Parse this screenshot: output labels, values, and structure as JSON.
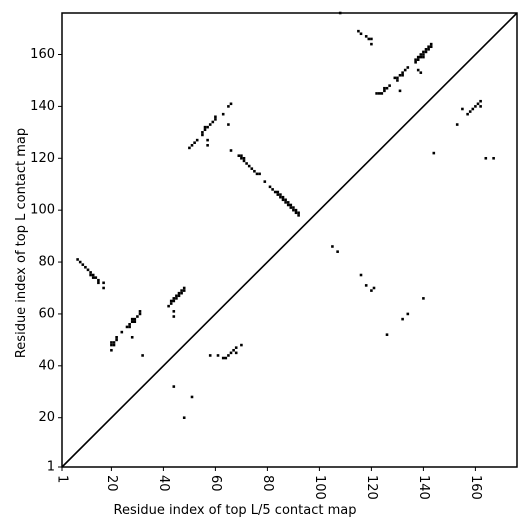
{
  "chart_data": {
    "type": "heatmap",
    "title": "",
    "xlabel": "Residue index of top L/5 contact map",
    "ylabel": "Residue index of top L contact map",
    "xlim": [
      1,
      176
    ],
    "ylim": [
      1,
      176
    ],
    "xticks": [
      {
        "value": 1,
        "label": "1"
      },
      {
        "value": 20,
        "label": "20"
      },
      {
        "value": 40,
        "label": "40"
      },
      {
        "value": 60,
        "label": "60"
      },
      {
        "value": 80,
        "label": "80"
      },
      {
        "value": 100,
        "label": "100"
      },
      {
        "value": 120,
        "label": "120"
      },
      {
        "value": 140,
        "label": "140"
      },
      {
        "value": 160,
        "label": "160"
      }
    ],
    "yticks": [
      {
        "value": 1,
        "label": "1"
      },
      {
        "value": 20,
        "label": "20"
      },
      {
        "value": 40,
        "label": "40"
      },
      {
        "value": 60,
        "label": "60"
      },
      {
        "value": 80,
        "label": "80"
      },
      {
        "value": 100,
        "label": "100"
      },
      {
        "value": 120,
        "label": "120"
      },
      {
        "value": 140,
        "label": "140"
      },
      {
        "value": 160,
        "label": "160"
      }
    ],
    "diagonal": [
      [
        1,
        1
      ],
      [
        176,
        176
      ]
    ],
    "grid": false,
    "colors": {
      "contact": "#000000",
      "background": "#ffffff"
    },
    "contacts_upper_left": [
      [
        108,
        176
      ],
      [
        115,
        169
      ],
      [
        116,
        168
      ],
      [
        118,
        167
      ],
      [
        119,
        166
      ],
      [
        120,
        166
      ],
      [
        120,
        164
      ],
      [
        122,
        145
      ],
      [
        123,
        145
      ],
      [
        124,
        145
      ],
      [
        125,
        146
      ],
      [
        125,
        147
      ],
      [
        126,
        147
      ],
      [
        127,
        148
      ],
      [
        129,
        151
      ],
      [
        130,
        150
      ],
      [
        130,
        151
      ],
      [
        131,
        152
      ],
      [
        132,
        152
      ],
      [
        132,
        153
      ],
      [
        133,
        154
      ],
      [
        134,
        155
      ],
      [
        131,
        146
      ],
      [
        137,
        157
      ],
      [
        137,
        158
      ],
      [
        138,
        158
      ],
      [
        138,
        159
      ],
      [
        139,
        159
      ],
      [
        139,
        160
      ],
      [
        140,
        160
      ],
      [
        140,
        161
      ],
      [
        141,
        161
      ],
      [
        141,
        162
      ],
      [
        142,
        162
      ],
      [
        142,
        163
      ],
      [
        143,
        163
      ],
      [
        143,
        164
      ],
      [
        138,
        154
      ],
      [
        139,
        153
      ],
      [
        140,
        159
      ],
      [
        50,
        124
      ],
      [
        51,
        125
      ],
      [
        52,
        126
      ],
      [
        53,
        127
      ],
      [
        55,
        129
      ],
      [
        55,
        130
      ],
      [
        56,
        131
      ],
      [
        56,
        132
      ],
      [
        57,
        132
      ],
      [
        58,
        133
      ],
      [
        59,
        134
      ],
      [
        60,
        135
      ],
      [
        60,
        136
      ],
      [
        57,
        127
      ],
      [
        57,
        125
      ],
      [
        63,
        137
      ],
      [
        65,
        133
      ],
      [
        65,
        140
      ],
      [
        66,
        141
      ],
      [
        66,
        123
      ],
      [
        69,
        121
      ],
      [
        70,
        121
      ],
      [
        70,
        120
      ],
      [
        71,
        120
      ],
      [
        71,
        119
      ],
      [
        72,
        118
      ],
      [
        73,
        117
      ],
      [
        74,
        116
      ],
      [
        75,
        115
      ],
      [
        76,
        114
      ],
      [
        77,
        114
      ],
      [
        79,
        111
      ],
      [
        81,
        109
      ],
      [
        82,
        108
      ],
      [
        83,
        107
      ],
      [
        84,
        107
      ],
      [
        84,
        106
      ],
      [
        85,
        106
      ],
      [
        85,
        105
      ],
      [
        86,
        105
      ],
      [
        86,
        104
      ],
      [
        87,
        104
      ],
      [
        87,
        103
      ],
      [
        88,
        103
      ],
      [
        88,
        102
      ],
      [
        89,
        102
      ],
      [
        89,
        101
      ],
      [
        90,
        101
      ],
      [
        90,
        100
      ],
      [
        91,
        100
      ],
      [
        91,
        99
      ],
      [
        92,
        99
      ],
      [
        92,
        98
      ],
      [
        7,
        81
      ],
      [
        8,
        80
      ],
      [
        9,
        79
      ],
      [
        10,
        78
      ],
      [
        11,
        77
      ],
      [
        12,
        76
      ],
      [
        12,
        75
      ],
      [
        13,
        75
      ],
      [
        13,
        74
      ],
      [
        14,
        74
      ],
      [
        15,
        73
      ],
      [
        15,
        72
      ],
      [
        17,
        72
      ],
      [
        17,
        70
      ],
      [
        20,
        49
      ],
      [
        20,
        48
      ],
      [
        21,
        48
      ],
      [
        21,
        49
      ],
      [
        22,
        50
      ],
      [
        22,
        51
      ],
      [
        20,
        46
      ],
      [
        24,
        53
      ],
      [
        26,
        55
      ],
      [
        27,
        55
      ],
      [
        27,
        56
      ],
      [
        28,
        57
      ],
      [
        28,
        58
      ],
      [
        29,
        58
      ],
      [
        29,
        57
      ],
      [
        30,
        59
      ],
      [
        31,
        60
      ],
      [
        31,
        61
      ],
      [
        28,
        51
      ],
      [
        32,
        44
      ],
      [
        42,
        63
      ],
      [
        43,
        64
      ],
      [
        43,
        65
      ],
      [
        44,
        65
      ],
      [
        44,
        66
      ],
      [
        45,
        66
      ],
      [
        45,
        67
      ],
      [
        46,
        67
      ],
      [
        46,
        68
      ],
      [
        47,
        68
      ],
      [
        47,
        69
      ],
      [
        48,
        69
      ],
      [
        48,
        70
      ],
      [
        44,
        61
      ],
      [
        44,
        59
      ],
      [
        44,
        32
      ],
      [
        48,
        20
      ],
      [
        51,
        28
      ],
      [
        58,
        44
      ],
      [
        61,
        44
      ],
      [
        63,
        43
      ],
      [
        64,
        43
      ],
      [
        65,
        44
      ],
      [
        66,
        45
      ],
      [
        67,
        46
      ],
      [
        68,
        47
      ],
      [
        68,
        45
      ],
      [
        70,
        48
      ],
      [
        105,
        86
      ],
      [
        107,
        84
      ],
      [
        116,
        75
      ],
      [
        118,
        71
      ],
      [
        120,
        69
      ],
      [
        121,
        70
      ],
      [
        126,
        52
      ],
      [
        132,
        58
      ],
      [
        134,
        60
      ],
      [
        140,
        66
      ],
      [
        153,
        133
      ],
      [
        155,
        139
      ],
      [
        157,
        137
      ],
      [
        158,
        138
      ],
      [
        159,
        139
      ],
      [
        160,
        140
      ],
      [
        161,
        141
      ],
      [
        162,
        142
      ],
      [
        162,
        140
      ],
      [
        164,
        120
      ],
      [
        167,
        120
      ],
      [
        144,
        122
      ]
    ]
  }
}
